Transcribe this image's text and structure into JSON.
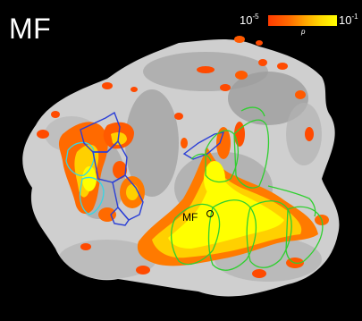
{
  "figure": {
    "title": "MF",
    "roi_label": "MF"
  },
  "colorbar": {
    "min_base": "10",
    "min_exp": "-5",
    "max_base": "10",
    "max_exp": "-1",
    "variable": "p",
    "colors": [
      "#ff3b00",
      "#ff6a00",
      "#ffa800",
      "#ffd600",
      "#ffff00"
    ]
  },
  "colors": {
    "background": "#000000",
    "cortex_light": "#d4d4d4",
    "cortex_dark": "#9a9a9a",
    "roi_blue": "#2b3fd6",
    "roi_cyan": "#35d6e6",
    "roi_green": "#2fcf2f"
  }
}
